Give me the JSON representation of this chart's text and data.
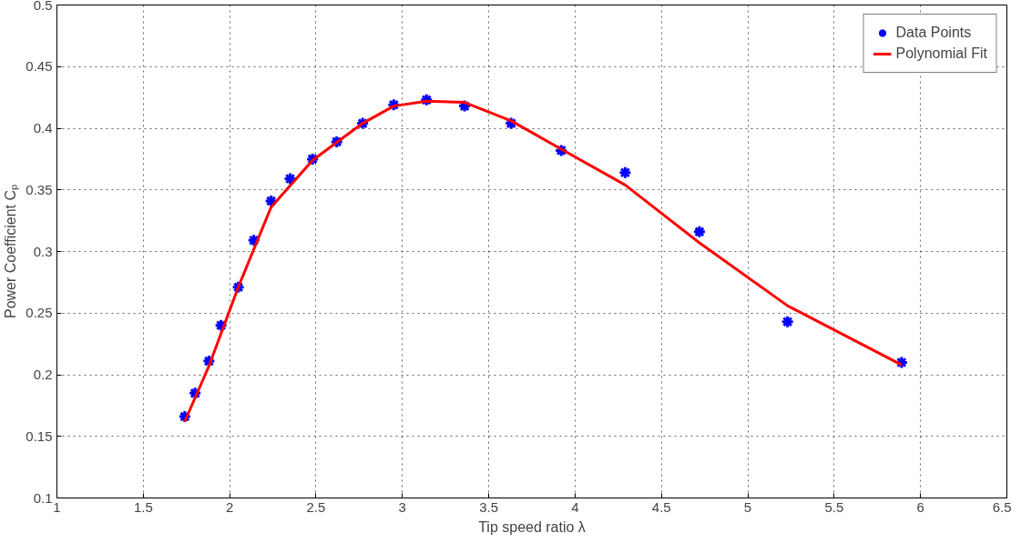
{
  "chart_data": {
    "type": "scatter",
    "xlabel": "Tip speed ratio λ",
    "ylabel": "Power Coefficient Cₚ",
    "xlim": [
      1,
      6.5
    ],
    "xticks": [
      1,
      1.5,
      2,
      2.5,
      3,
      3.5,
      4,
      4.5,
      5,
      5.5,
      6,
      6.5
    ],
    "ylim": [
      0.1,
      0.5
    ],
    "yticks": [
      0.1,
      0.15,
      0.2,
      0.25,
      0.3,
      0.35,
      0.4,
      0.45,
      0.5
    ],
    "grid": true,
    "legend": "top right",
    "line_style": "dotted",
    "series": [
      {
        "name": "Data Points",
        "marker": "cross",
        "color": "#0000ff",
        "x": [
          1.74,
          1.8,
          1.88,
          1.95,
          2.05,
          2.14,
          2.24,
          2.35,
          2.48,
          2.62,
          2.77,
          2.95,
          3.14,
          3.36,
          3.63,
          3.92,
          4.29,
          4.72,
          5.23,
          5.89
        ],
        "values": [
          0.166,
          0.185,
          0.211,
          0.24,
          0.271,
          0.309,
          0.341,
          0.359,
          0.375,
          0.389,
          0.404,
          0.419,
          0.423,
          0.418,
          0.404,
          0.382,
          0.364,
          0.316,
          0.243,
          0.21
        ]
      },
      {
        "name": "Polynomial Fit",
        "type": "line",
        "line_style": "solid",
        "color": "#ff0000",
        "x": [
          1.74,
          1.88,
          2.05,
          2.24,
          2.48,
          2.77,
          2.95,
          3.14,
          3.36,
          3.63,
          3.92,
          4.29,
          4.72,
          5.23,
          5.89
        ],
        "values": [
          0.162,
          0.207,
          0.271,
          0.336,
          0.374,
          0.404,
          0.418,
          0.422,
          0.421,
          0.406,
          0.383,
          0.354,
          0.307,
          0.256,
          0.208
        ]
      }
    ]
  }
}
